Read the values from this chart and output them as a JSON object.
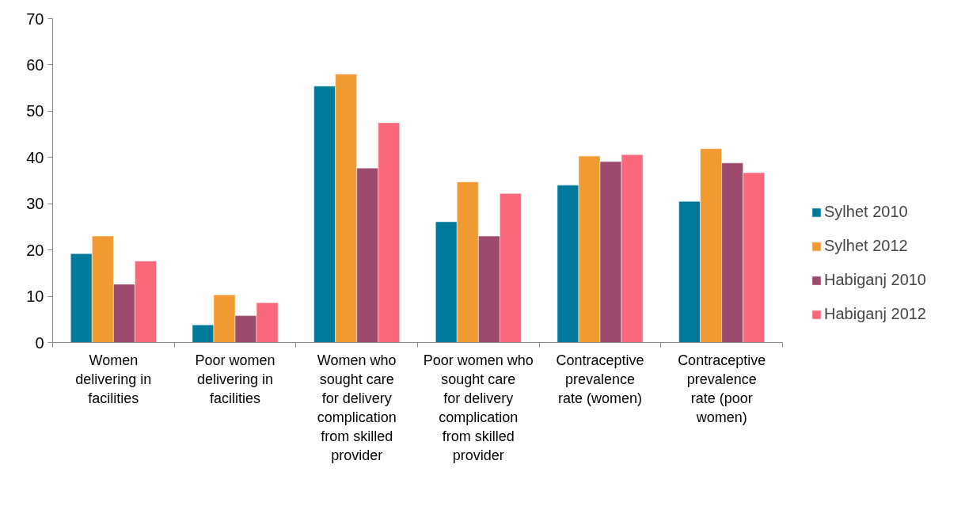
{
  "chart_data": {
    "type": "bar",
    "categories": [
      "Women delivering in facilities",
      "Poor women delivering in facilities",
      "Women who sought care for delivery complication from skilled provider",
      "Poor women who sought care for delivery complication from skilled provider",
      "Contraceptive prevalence rate (women)",
      "Contraceptive prevalence rate (poor women)"
    ],
    "series": [
      {
        "name": "Sylhet 2010",
        "color": "#007a9b",
        "values": [
          19.2,
          3.8,
          55.4,
          26.1,
          34.0,
          30.5
        ]
      },
      {
        "name": "Sylhet 2012",
        "color": "#f29a32",
        "values": [
          23.0,
          10.3,
          58.0,
          34.7,
          40.3,
          41.9
        ]
      },
      {
        "name": "Habiganj 2010",
        "color": "#9c4a6e",
        "values": [
          12.6,
          5.8,
          37.7,
          23.0,
          39.1,
          38.8
        ]
      },
      {
        "name": "Habiganj 2012",
        "color": "#fa687b",
        "values": [
          17.6,
          8.6,
          47.5,
          32.2,
          40.6,
          36.7
        ]
      }
    ],
    "ylim": [
      0,
      70
    ],
    "yticks": [
      0,
      10,
      20,
      30,
      40,
      50,
      60,
      70
    ],
    "grid": false,
    "legend": "right"
  }
}
